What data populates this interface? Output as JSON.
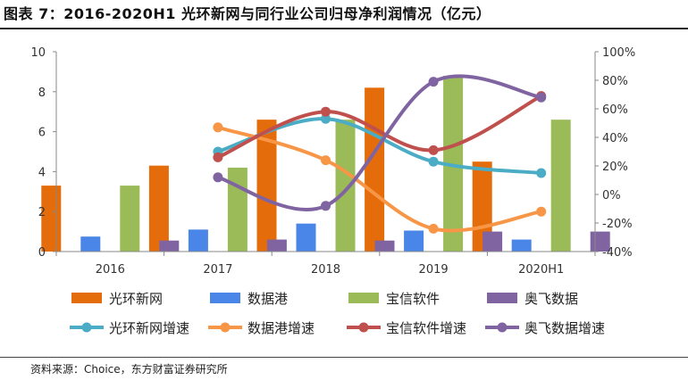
{
  "title": "图表 7：2016-2020H1 光环新网与同行业公司归母净利润情况（亿元）",
  "source": "资料来源：Choice，东方财富证券研究所",
  "colors": {
    "光环新网": "#E46C0A",
    "数据港": "#4A86E8",
    "宝信软件": "#9BBB59",
    "奥飞数据": "#8064A2",
    "光环新网增速": "#4BACC6",
    "数据港增速": "#F79646",
    "宝信软件增速": "#C0504D",
    "奥飞数据增速": "#8064A2"
  },
  "chart_data": {
    "type": "bar",
    "title": "2016-2020H1 光环新网与同行业公司归母净利润情况（亿元）",
    "categories": [
      "2016",
      "2017",
      "2018",
      "2019",
      "2020H1"
    ],
    "ylim": [
      0,
      10
    ],
    "yticks": [
      "0",
      "2",
      "4",
      "6",
      "8",
      "10"
    ],
    "y2lim": [
      -40,
      100
    ],
    "y2ticks": [
      "-40%",
      "-20%",
      "0%",
      "20%",
      "40%",
      "60%",
      "80%",
      "100%"
    ],
    "series": [
      {
        "name": "光环新网",
        "type": "bar",
        "axis": "left",
        "values": [
          3.3,
          4.3,
          6.6,
          8.2,
          4.5
        ]
      },
      {
        "name": "数据港",
        "type": "bar",
        "axis": "left",
        "values": [
          0.75,
          1.1,
          1.4,
          1.05,
          0.6
        ]
      },
      {
        "name": "宝信软件",
        "type": "bar",
        "axis": "left",
        "values": [
          3.3,
          4.2,
          6.6,
          8.8,
          6.6
        ]
      },
      {
        "name": "奥飞数据",
        "type": "bar",
        "axis": "left",
        "values": [
          0.55,
          0.6,
          0.55,
          1.0,
          1.0
        ]
      },
      {
        "name": "光环新网增速",
        "type": "line",
        "axis": "right",
        "values": [
          null,
          30,
          53,
          23,
          15
        ]
      },
      {
        "name": "数据港增速",
        "type": "line",
        "axis": "right",
        "values": [
          null,
          47,
          24,
          -24,
          -12
        ]
      },
      {
        "name": "宝信软件增速",
        "type": "line",
        "axis": "right",
        "values": [
          null,
          26,
          58,
          31,
          69
        ]
      },
      {
        "name": "奥飞数据增速",
        "type": "line",
        "axis": "right",
        "values": [
          null,
          12,
          -8,
          79,
          68
        ]
      }
    ]
  }
}
